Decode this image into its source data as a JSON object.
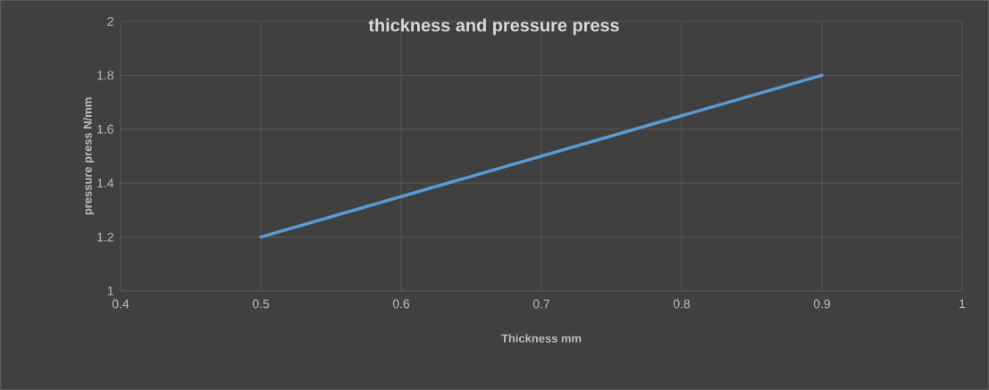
{
  "chart_data": {
    "type": "line",
    "title": "thickness and pressure press",
    "xlabel": "Thickness  mm",
    "ylabel": "pressure press N/mm",
    "x": [
      0.5,
      0.9
    ],
    "series": [
      {
        "color": "#5b9bd5",
        "values": [
          1.2,
          1.8
        ]
      }
    ],
    "xlim": [
      0.4,
      1
    ],
    "xticks": [
      0.4,
      0.5,
      0.6,
      0.7,
      0.8,
      0.9,
      1
    ],
    "ylim": [
      1,
      2
    ],
    "yticks": [
      1,
      1.2,
      1.4,
      1.6,
      1.8,
      2
    ],
    "grid": true,
    "marker": "none",
    "line_style": "solid"
  }
}
